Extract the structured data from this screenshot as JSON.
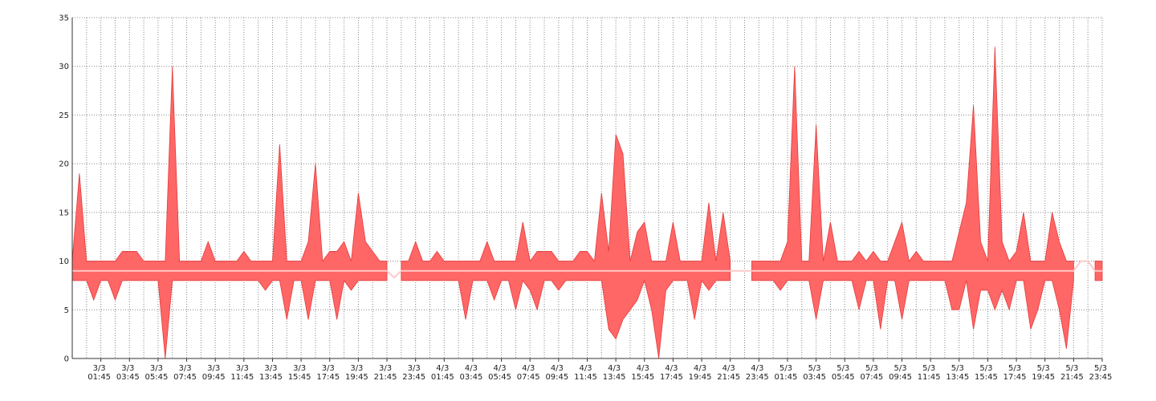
{
  "chart_data": {
    "type": "band",
    "x": [
      0,
      0.5,
      1,
      1.5,
      2,
      2.5,
      3,
      3.5,
      4,
      4.5,
      5,
      5.5,
      6,
      6.5,
      7,
      7.5,
      8,
      8.5,
      9,
      9.5,
      10,
      10.5,
      11,
      11.5,
      12,
      12.5,
      13,
      13.5,
      14,
      14.5,
      15,
      15.5,
      16,
      16.5,
      17,
      17.5,
      18,
      18.5,
      19,
      19.5,
      20,
      20.5,
      21,
      21.5,
      22,
      22.5,
      23,
      23.5,
      24,
      24.5,
      25,
      25.5,
      26,
      26.5,
      27,
      27.5,
      28,
      28.5,
      29,
      29.5,
      30,
      30.5,
      31,
      31.5,
      32,
      32.5,
      33,
      33.5,
      34,
      34.5,
      35,
      35.5,
      36,
      36.5,
      37,
      37.5,
      38,
      38.5,
      39,
      39.5,
      40,
      40.5,
      41,
      41.5,
      42,
      42.5,
      43,
      43.5,
      44,
      44.5,
      45,
      45.5,
      46,
      46.5,
      47,
      47.5,
      48,
      48.5,
      49,
      49.5,
      50,
      50.5,
      51,
      51.5,
      52,
      52.5,
      53,
      53.5,
      54,
      54.5,
      55,
      55.5,
      56,
      56.5,
      57,
      57.5,
      58,
      58.5,
      59,
      59.5,
      60,
      60.5,
      61,
      61.5,
      62,
      62.5,
      63,
      63.5,
      64,
      64.5,
      65,
      65.5,
      66,
      66.5,
      67,
      67.5,
      68,
      68.5,
      69,
      69.5,
      70,
      70.5,
      71,
      71.5,
      72
    ],
    "band": {
      "color": "#ff6666",
      "stroke": "#e23c3c",
      "upper": [
        10,
        19,
        10,
        10,
        10,
        10,
        10,
        11,
        11,
        11,
        10,
        10,
        10,
        10,
        30,
        10,
        10,
        10,
        10,
        12,
        10,
        10,
        10,
        10,
        11,
        10,
        10,
        10,
        10,
        22,
        10,
        10,
        10,
        12,
        20,
        10,
        11,
        11,
        12,
        10,
        17,
        12,
        11,
        10,
        10,
        null,
        10,
        10,
        12,
        10,
        10,
        11,
        10,
        10,
        10,
        10,
        10,
        10,
        12,
        10,
        10,
        10,
        10,
        14,
        10,
        11,
        11,
        11,
        10,
        10,
        10,
        11,
        11,
        10,
        17,
        11,
        23,
        21,
        10,
        13,
        14,
        10,
        10,
        10,
        14,
        10,
        10,
        10,
        10,
        16,
        10,
        15,
        10,
        null,
        null,
        10,
        10,
        10,
        10,
        10,
        12,
        30,
        10,
        10,
        24,
        10,
        14,
        10,
        10,
        10,
        11,
        10,
        11,
        10,
        10,
        12,
        14,
        10,
        11,
        10,
        10,
        10,
        10,
        10,
        13,
        16,
        26,
        12,
        10,
        32,
        12,
        10,
        11,
        15,
        10,
        10,
        10,
        15,
        12,
        10,
        10,
        null,
        null,
        10,
        10
      ],
      "lower": [
        8,
        8,
        8,
        6,
        8,
        8,
        6,
        8,
        8,
        8,
        8,
        8,
        8,
        0,
        8,
        8,
        8,
        8,
        8,
        8,
        8,
        8,
        8,
        8,
        8,
        8,
        8,
        7,
        8,
        8,
        4,
        8,
        8,
        4,
        8,
        8,
        8,
        4,
        8,
        7,
        8,
        8,
        8,
        8,
        8,
        null,
        8,
        8,
        8,
        8,
        8,
        8,
        8,
        8,
        8,
        4,
        8,
        8,
        8,
        6,
        8,
        8,
        5,
        8,
        7,
        5,
        8,
        8,
        7,
        8,
        8,
        8,
        8,
        8,
        8,
        3,
        2,
        4,
        5,
        6,
        8,
        5,
        0,
        7,
        8,
        8,
        8,
        4,
        8,
        7,
        8,
        8,
        8,
        null,
        null,
        8,
        8,
        8,
        8,
        7,
        8,
        8,
        8,
        8,
        4,
        8,
        8,
        8,
        8,
        8,
        5,
        8,
        8,
        3,
        8,
        8,
        4,
        8,
        8,
        8,
        8,
        8,
        8,
        5,
        5,
        8,
        3,
        7,
        7,
        5,
        7,
        5,
        8,
        8,
        3,
        5,
        8,
        8,
        5,
        1,
        8,
        null,
        null,
        8,
        8
      ]
    },
    "line": {
      "color": "#ffc8c8",
      "values": [
        9,
        9,
        9,
        9,
        9,
        9,
        9,
        9,
        9,
        9,
        9,
        9,
        9,
        9,
        9,
        9,
        9,
        9,
        9,
        9,
        9,
        9,
        9,
        9,
        9,
        9,
        9,
        9,
        9,
        9,
        9,
        9,
        9,
        9,
        9,
        9,
        9,
        9,
        9,
        9,
        9,
        9,
        9,
        9,
        9,
        8.3,
        9,
        9,
        9,
        9,
        9,
        9,
        9,
        9,
        9,
        9,
        9,
        9,
        9,
        9,
        9,
        9,
        9,
        9,
        9,
        9,
        9,
        9,
        9,
        9,
        9,
        9,
        9,
        9,
        9,
        9,
        9,
        9,
        9,
        9,
        9,
        9,
        9,
        9,
        9,
        9,
        9,
        9,
        9,
        9,
        9,
        9,
        9,
        9,
        9,
        9,
        9,
        9,
        9,
        9,
        9,
        9,
        9,
        9,
        9,
        9,
        9,
        9,
        9,
        9,
        9,
        9,
        9,
        9,
        9,
        9,
        9,
        9,
        9,
        9,
        9,
        9,
        9,
        9,
        9,
        9,
        9,
        9,
        9,
        9,
        9,
        9,
        9,
        9,
        9,
        9,
        9,
        9,
        9,
        9,
        9,
        10,
        10,
        9,
        9
      ]
    },
    "xlim": [
      0,
      72
    ],
    "xticks": [
      {
        "value": 2,
        "label": [
          "3/3",
          "01:45"
        ]
      },
      {
        "value": 4,
        "label": [
          "3/3",
          "03:45"
        ]
      },
      {
        "value": 6,
        "label": [
          "3/3",
          "05:45"
        ]
      },
      {
        "value": 8,
        "label": [
          "3/3",
          "07:45"
        ]
      },
      {
        "value": 10,
        "label": [
          "3/3",
          "09:45"
        ]
      },
      {
        "value": 12,
        "label": [
          "3/3",
          "11:45"
        ]
      },
      {
        "value": 14,
        "label": [
          "3/3",
          "13:45"
        ]
      },
      {
        "value": 16,
        "label": [
          "3/3",
          "15:45"
        ]
      },
      {
        "value": 18,
        "label": [
          "3/3",
          "17:45"
        ]
      },
      {
        "value": 20,
        "label": [
          "3/3",
          "19:45"
        ]
      },
      {
        "value": 22,
        "label": [
          "3/3",
          "21:45"
        ]
      },
      {
        "value": 24,
        "label": [
          "3/3",
          "23:45"
        ]
      },
      {
        "value": 26,
        "label": [
          "4/3",
          "01:45"
        ]
      },
      {
        "value": 28,
        "label": [
          "4/3",
          "03:45"
        ]
      },
      {
        "value": 30,
        "label": [
          "4/3",
          "05:45"
        ]
      },
      {
        "value": 32,
        "label": [
          "4/3",
          "07:45"
        ]
      },
      {
        "value": 34,
        "label": [
          "4/3",
          "09:45"
        ]
      },
      {
        "value": 36,
        "label": [
          "4/3",
          "11:45"
        ]
      },
      {
        "value": 38,
        "label": [
          "4/3",
          "13:45"
        ]
      },
      {
        "value": 40,
        "label": [
          "4/3",
          "15:45"
        ]
      },
      {
        "value": 42,
        "label": [
          "4/3",
          "17:45"
        ]
      },
      {
        "value": 44,
        "label": [
          "4/3",
          "19:45"
        ]
      },
      {
        "value": 46,
        "label": [
          "4/3",
          "21:45"
        ]
      },
      {
        "value": 48,
        "label": [
          "4/3",
          "23:45"
        ]
      },
      {
        "value": 50,
        "label": [
          "5/3",
          "01:45"
        ]
      },
      {
        "value": 52,
        "label": [
          "5/3",
          "03:45"
        ]
      },
      {
        "value": 54,
        "label": [
          "5/3",
          "05:45"
        ]
      },
      {
        "value": 56,
        "label": [
          "5/3",
          "07:45"
        ]
      },
      {
        "value": 58,
        "label": [
          "5/3",
          "09:45"
        ]
      },
      {
        "value": 60,
        "label": [
          "5/3",
          "11:45"
        ]
      },
      {
        "value": 62,
        "label": [
          "5/3",
          "13:45"
        ]
      },
      {
        "value": 64,
        "label": [
          "5/3",
          "15:45"
        ]
      },
      {
        "value": 66,
        "label": [
          "5/3",
          "17:45"
        ]
      },
      {
        "value": 68,
        "label": [
          "5/3",
          "19:45"
        ]
      },
      {
        "value": 70,
        "label": [
          "5/3",
          "21:45"
        ]
      },
      {
        "value": 72,
        "label": [
          "5/3",
          "23:45"
        ]
      }
    ],
    "xminorticks": [
      1,
      3,
      5,
      7,
      9,
      11,
      13,
      15,
      17,
      19,
      21,
      23,
      25,
      27,
      29,
      31,
      33,
      35,
      37,
      39,
      41,
      43,
      45,
      47,
      49,
      51,
      53,
      55,
      57,
      59,
      61,
      63,
      65,
      67,
      69,
      71
    ],
    "ylim": [
      0,
      35
    ],
    "yticks": [
      0,
      5,
      10,
      15,
      20,
      25,
      30,
      35
    ],
    "grid": true
  }
}
